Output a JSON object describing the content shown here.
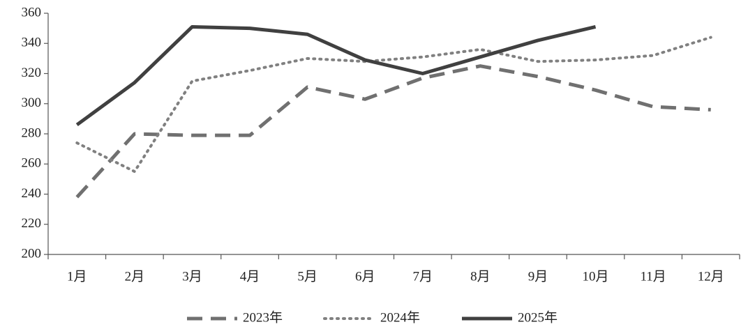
{
  "chart_data": {
    "type": "line",
    "categories": [
      "1月",
      "2月",
      "3月",
      "4月",
      "5月",
      "6月",
      "7月",
      "8月",
      "9月",
      "10月",
      "11月",
      "12月"
    ],
    "series": [
      {
        "name": "2023年",
        "color": "#707070",
        "style": "dashed",
        "values": [
          238,
          280,
          279,
          279,
          311,
          303,
          317,
          325,
          318,
          309,
          298,
          296
        ]
      },
      {
        "name": "2024年",
        "color": "#808080",
        "style": "dotted",
        "values": [
          274,
          255,
          315,
          322,
          330,
          328,
          331,
          336,
          328,
          329,
          332,
          344
        ]
      },
      {
        "name": "2025年",
        "color": "#404040",
        "style": "solid",
        "values": [
          286,
          314,
          351,
          350,
          346,
          329,
          320,
          331,
          342,
          351,
          null,
          null
        ]
      }
    ],
    "ylim": [
      200,
      360
    ],
    "yticks": [
      200,
      220,
      240,
      260,
      280,
      300,
      320,
      340,
      360
    ],
    "grid": false,
    "legend": "bottom"
  }
}
